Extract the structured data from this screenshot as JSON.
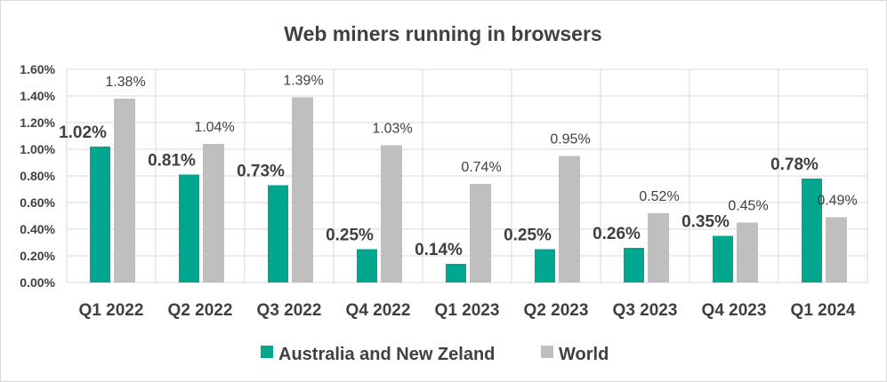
{
  "chart_data": {
    "type": "bar",
    "title": "Web miners running in browsers",
    "xlabel": "",
    "ylabel": "",
    "ylim": [
      0,
      1.6
    ],
    "yticks": [
      "0.00%",
      "0.20%",
      "0.40%",
      "0.60%",
      "0.80%",
      "1.00%",
      "1.20%",
      "1.40%",
      "1.60%"
    ],
    "grid": true,
    "legend_position": "bottom",
    "categories": [
      "Q1 2022",
      "Q2 2022",
      "Q3 2022",
      "Q4 2022",
      "Q1 2023",
      "Q2 2023",
      "Q3 2023",
      "Q4 2023",
      "Q1 2024"
    ],
    "series": [
      {
        "name": "Australia and New Zeland",
        "color": "#00A78E",
        "values": [
          1.02,
          0.81,
          0.73,
          0.25,
          0.14,
          0.25,
          0.26,
          0.35,
          0.78
        ],
        "labels": [
          "1.02%",
          "0.81%",
          "0.73%",
          "0.25%",
          "0.14%",
          "0.25%",
          "0.26%",
          "0.35%",
          "0.78%"
        ]
      },
      {
        "name": "World",
        "color": "#BFBFBF",
        "values": [
          1.38,
          1.04,
          1.39,
          1.03,
          0.74,
          0.95,
          0.52,
          0.45,
          0.49
        ],
        "labels": [
          "1.38%",
          "1.04%",
          "1.39%",
          "1.03%",
          "0.74%",
          "0.95%",
          "0.52%",
          "0.45%",
          "0.49%"
        ]
      }
    ]
  }
}
